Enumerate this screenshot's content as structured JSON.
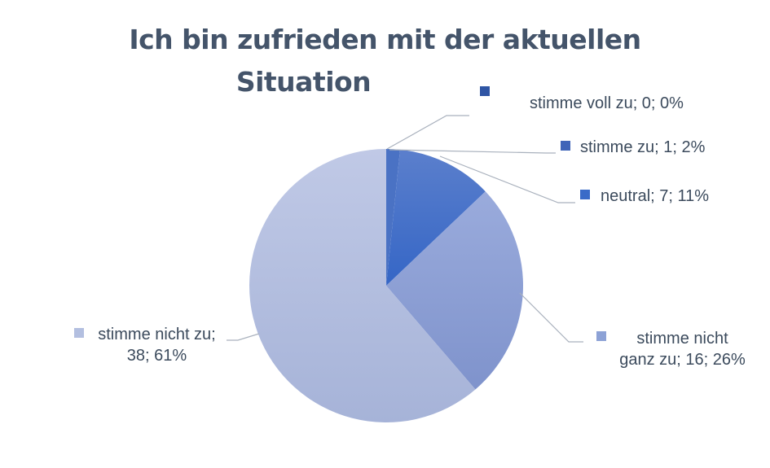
{
  "chart_data": {
    "type": "pie",
    "title": "Ich bin zufrieden mit der aktuellen Situation",
    "title_lines": [
      "Ich bin zufrieden mit der aktuellen",
      "Situation"
    ],
    "categories": [
      "stimme voll zu",
      "stimme zu",
      "neutral",
      "stimme nicht ganz zu",
      "stimme nicht zu"
    ],
    "values": [
      0,
      1,
      7,
      16,
      38
    ],
    "percentages": [
      0,
      2,
      11,
      26,
      61
    ],
    "colors": [
      "#2f55a4",
      "#4a72c4",
      "#3a6bc8",
      "#8da2d6",
      "#b3bfe0"
    ],
    "legend_position": "data labels with leader lines",
    "labels": [
      {
        "text": "stimme voll zu; 0; 0%"
      },
      {
        "text": "stimme zu; 1; 2%"
      },
      {
        "text": "neutral; 7; 11%"
      },
      {
        "line1": "stimme nicht",
        "line2": "ganz zu; 16; 26%"
      },
      {
        "line1": "stimme nicht zu;",
        "line2": "38; 61%"
      }
    ]
  }
}
